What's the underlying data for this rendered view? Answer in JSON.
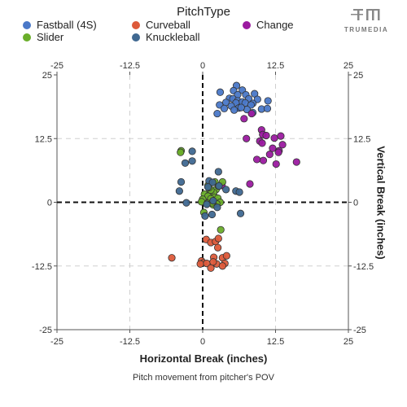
{
  "legend": {
    "title": "PitchType",
    "items": [
      {
        "label": "Fastball (4S)",
        "color": "#4a78c8"
      },
      {
        "label": "Curveball",
        "color": "#dd5a3a"
      },
      {
        "label": "Change",
        "color": "#9b1aa0"
      },
      {
        "label": "Slider",
        "color": "#6aae2a"
      },
      {
        "label": "Knuckleball",
        "color": "#3f6891"
      }
    ]
  },
  "logo": {
    "text": "TRUMEDIA"
  },
  "chart_data": {
    "type": "scatter",
    "xlabel": "Horizontal Break (inches)",
    "ylabel": "Vertical Break (inches)",
    "caption": "Pitch movement from pitcher's POV",
    "xlim": [
      -25,
      25
    ],
    "ylim": [
      -25,
      25
    ],
    "xticks": [
      -25,
      -12.5,
      0,
      12.5,
      25
    ],
    "yticks": [
      -25,
      -12.5,
      0,
      12.5,
      25
    ],
    "xtick_labels": [
      "-25",
      "-12.5",
      "0",
      "12.5",
      "25"
    ],
    "ytick_labels": [
      "-25",
      "-12.5",
      "0",
      "12.5",
      "25"
    ],
    "grid": true,
    "zero_lines": "dashed",
    "series": [
      {
        "name": "Fastball (4S)",
        "color": "#4a78c8",
        "points": [
          [
            5.8,
            22.9
          ],
          [
            6.8,
            22.0
          ],
          [
            5.3,
            21.9
          ],
          [
            3.0,
            21.6
          ],
          [
            6.0,
            21.1
          ],
          [
            7.4,
            21.1
          ],
          [
            8.9,
            21.3
          ],
          [
            4.6,
            20.4
          ],
          [
            5.2,
            20.3
          ],
          [
            6.0,
            19.9
          ],
          [
            6.8,
            19.7
          ],
          [
            7.9,
            20.3
          ],
          [
            9.4,
            20.2
          ],
          [
            4.0,
            19.6
          ],
          [
            5.7,
            19.5
          ],
          [
            7.3,
            19.5
          ],
          [
            8.6,
            19.4
          ],
          [
            11.2,
            19.9
          ],
          [
            2.9,
            19.1
          ],
          [
            4.9,
            18.9
          ],
          [
            6.2,
            18.5
          ],
          [
            8.3,
            19.1
          ],
          [
            5.4,
            18.1
          ],
          [
            7.6,
            18.2
          ],
          [
            10.1,
            18.3
          ],
          [
            11.1,
            18.4
          ],
          [
            3.7,
            18.4
          ],
          [
            6.6,
            18.6
          ],
          [
            2.5,
            17.4
          ],
          [
            8.6,
            17.6
          ]
        ]
      },
      {
        "name": "Curveball",
        "color": "#dd5a3a",
        "points": [
          [
            0.6,
            -7.3
          ],
          [
            1.4,
            -7.9
          ],
          [
            2.2,
            -7.7
          ],
          [
            2.7,
            -7.1
          ],
          [
            2.6,
            -8.9
          ],
          [
            -5.3,
            -10.9
          ],
          [
            1.9,
            -10.8
          ],
          [
            3.4,
            -10.9
          ],
          [
            4.1,
            -10.5
          ],
          [
            -0.2,
            -11.5
          ],
          [
            0.1,
            -11.9
          ],
          [
            -0.4,
            -12.1
          ],
          [
            0.7,
            -12.0
          ],
          [
            2.4,
            -12.1
          ],
          [
            3.8,
            -12.0
          ],
          [
            3.4,
            -12.5
          ],
          [
            1.4,
            -12.9
          ],
          [
            1.8,
            -11.7
          ]
        ]
      },
      {
        "name": "Change",
        "color": "#9b1aa0",
        "points": [
          [
            8.4,
            17.4
          ],
          [
            7.1,
            16.4
          ],
          [
            10.1,
            14.2
          ],
          [
            7.5,
            12.5
          ],
          [
            9.8,
            12.0
          ],
          [
            10.3,
            13.3
          ],
          [
            10.9,
            13.1
          ],
          [
            12.3,
            12.6
          ],
          [
            13.4,
            13.0
          ],
          [
            10.2,
            11.6
          ],
          [
            12.0,
            10.6
          ],
          [
            13.1,
            10.1
          ],
          [
            13.7,
            11.3
          ],
          [
            10.4,
            8.2
          ],
          [
            12.6,
            7.5
          ],
          [
            16.1,
            7.9
          ],
          [
            9.3,
            8.4
          ],
          [
            11.5,
            9.4
          ],
          [
            13.0,
            9.8
          ],
          [
            3.3,
            3.3
          ],
          [
            8.1,
            3.6
          ]
        ]
      },
      {
        "name": "Slider",
        "color": "#6aae2a",
        "points": [
          [
            -3.7,
            10.1
          ],
          [
            -3.8,
            9.8
          ],
          [
            1.2,
            2.1
          ],
          [
            2.3,
            2.5
          ],
          [
            1.9,
            1.9
          ],
          [
            0.3,
            1.6
          ],
          [
            0.9,
            1.2
          ],
          [
            2.0,
            1.0
          ],
          [
            0.0,
            0.6
          ],
          [
            1.4,
            0.7
          ],
          [
            2.6,
            0.8
          ],
          [
            -0.2,
            0.1
          ],
          [
            0.8,
            -0.2
          ],
          [
            3.0,
            0.0
          ],
          [
            2.4,
            -0.3
          ],
          [
            1.8,
            -0.5
          ],
          [
            3.4,
            4.0
          ],
          [
            2.7,
            3.2
          ],
          [
            1.4,
            2.4
          ],
          [
            0.9,
            3.3
          ],
          [
            1.6,
            -0.1
          ],
          [
            3.1,
            -5.4
          ],
          [
            2.1,
            4.0
          ],
          [
            0.2,
            -2.0
          ],
          [
            1.1,
            2.9
          ]
        ]
      },
      {
        "name": "Knuckleball",
        "color": "#3f6891",
        "points": [
          [
            -1.8,
            10.0
          ],
          [
            -1.8,
            8.1
          ],
          [
            -3.0,
            7.7
          ],
          [
            2.7,
            6.0
          ],
          [
            -3.7,
            4.0
          ],
          [
            -4.0,
            2.2
          ],
          [
            1.1,
            4.2
          ],
          [
            1.7,
            3.9
          ],
          [
            2.8,
            3.2
          ],
          [
            0.9,
            3.0
          ],
          [
            4.0,
            2.5
          ],
          [
            5.7,
            2.2
          ],
          [
            6.3,
            2.0
          ],
          [
            -2.8,
            -0.1
          ],
          [
            1.8,
            0.3
          ],
          [
            0.7,
            -0.4
          ],
          [
            2.5,
            -1.0
          ],
          [
            6.5,
            -2.2
          ],
          [
            1.6,
            -2.4
          ],
          [
            0.4,
            -2.7
          ]
        ]
      }
    ]
  }
}
